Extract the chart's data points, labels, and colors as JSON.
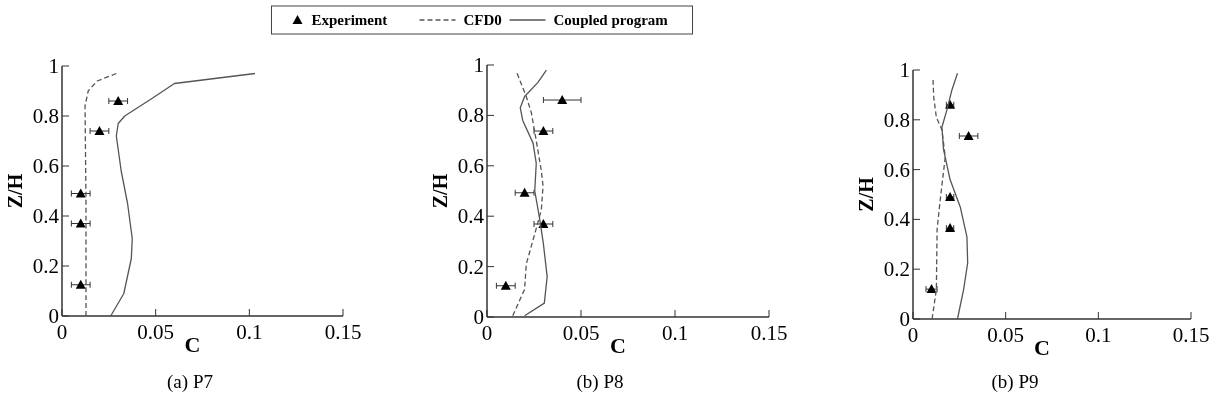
{
  "chart_data": [
    {
      "type": "line",
      "title": "(a) P7",
      "xlabel": "C",
      "ylabel": "Z/H",
      "xlim": [
        0,
        0.15
      ],
      "xticks": [
        0,
        0.05,
        0.1,
        0.15
      ],
      "ylim": [
        0,
        1
      ],
      "yticks": [
        0,
        0.2,
        0.4,
        0.6,
        0.8,
        1
      ],
      "legend": "top",
      "grid": false,
      "series": [
        {
          "name": "Experiment",
          "type": "scatter",
          "marker": "triangle",
          "color": "#000000",
          "x": [
            0.01,
            0.01,
            0.01,
            0.02,
            0.03
          ],
          "values": [
            0.125,
            0.37,
            0.49,
            0.74,
            0.86
          ],
          "xerrors": [
            0.005,
            0.005,
            0.005,
            0.005,
            0.005
          ]
        },
        {
          "name": "CFD0",
          "line_style": "dashed",
          "color": "#555555",
          "x": [
            0.0128,
            0.0128,
            0.0123,
            0.014,
            0.0188,
            0.029
          ],
          "values": [
            0,
            0.46,
            0.84,
            0.9,
            0.94,
            0.97
          ]
        },
        {
          "name": "Coupled program",
          "line_style": "solid",
          "color": "#555555",
          "x": [
            0.026,
            0.033,
            0.037,
            0.0375,
            0.035,
            0.0316,
            0.029,
            0.03,
            0.0335,
            0.0397,
            0.048,
            0.06,
            0.103
          ],
          "values": [
            0,
            0.09,
            0.23,
            0.31,
            0.45,
            0.58,
            0.72,
            0.77,
            0.8,
            0.83,
            0.87,
            0.93,
            0.97
          ]
        }
      ]
    },
    {
      "type": "line",
      "title": "(b) P8",
      "xlabel": "C",
      "ylabel": "Z/H",
      "xlim": [
        0,
        0.15
      ],
      "xticks": [
        0,
        0.05,
        0.1,
        0.15
      ],
      "ylim": [
        0,
        1
      ],
      "yticks": [
        0,
        0.2,
        0.4,
        0.6,
        0.8,
        1
      ],
      "grid": false,
      "series": [
        {
          "type": "scatter",
          "marker": "triangle",
          "color": "#000000",
          "x": [
            0.01,
            0.03,
            0.02,
            0.03,
            0.04
          ],
          "values": [
            0.124,
            0.369,
            0.493,
            0.738,
            0.861
          ],
          "xerrors": [
            0.005,
            0.005,
            0.005,
            0.005,
            0.01
          ]
        },
        {
          "line_style": "dashed",
          "color": "#555555",
          "x": [
            0.0137,
            0.02,
            0.0209,
            0.0254,
            0.0289,
            0.0298,
            0.0289,
            0.0262,
            0.0236,
            0.0209,
            0.016
          ],
          "values": [
            0.005,
            0.11,
            0.21,
            0.33,
            0.425,
            0.52,
            0.58,
            0.7,
            0.81,
            0.875,
            0.967
          ]
        },
        {
          "line_style": "solid",
          "color": "#555555",
          "x": [
            0.02,
            0.0305,
            0.032,
            0.03,
            0.028,
            0.0254,
            0.0262,
            0.0245,
            0.019,
            0.0177,
            0.02,
            0.027,
            0.0316
          ],
          "values": [
            0.005,
            0.055,
            0.16,
            0.29,
            0.39,
            0.5,
            0.61,
            0.69,
            0.78,
            0.83,
            0.875,
            0.93,
            0.98
          ]
        }
      ]
    },
    {
      "type": "line",
      "title": "(b) P9",
      "xlabel": "C",
      "ylabel": "Z/H",
      "xlim": [
        0,
        0.15
      ],
      "xticks": [
        0,
        0.05,
        0.1,
        0.15
      ],
      "ylim": [
        0,
        1
      ],
      "yticks": [
        0,
        0.2,
        0.4,
        0.6,
        0.8,
        1
      ],
      "grid": false,
      "series": [
        {
          "type": "scatter",
          "marker": "triangle",
          "color": "#000000",
          "x": [
            0.01,
            0.02,
            0.02,
            0.03,
            0.02
          ],
          "values": [
            0.12,
            0.365,
            0.49,
            0.735,
            0.86
          ],
          "xerrors": [
            0.003,
            0.002,
            0.002,
            0.005,
            0.002
          ]
        },
        {
          "line_style": "dashed",
          "color": "#555555",
          "x": [
            0.0103,
            0.0126,
            0.013,
            0.0147,
            0.0174,
            0.0156,
            0.0126,
            0.0112,
            0.0108
          ],
          "values": [
            0,
            0.118,
            0.36,
            0.48,
            0.65,
            0.76,
            0.81,
            0.89,
            0.96
          ]
        },
        {
          "line_style": "solid",
          "color": "#555555",
          "x": [
            0.024,
            0.0273,
            0.0295,
            0.0291,
            0.0255,
            0.02,
            0.0165,
            0.0156,
            0.0183,
            0.021,
            0.024
          ],
          "values": [
            0,
            0.118,
            0.225,
            0.33,
            0.45,
            0.56,
            0.68,
            0.77,
            0.84,
            0.92,
            0.987
          ]
        }
      ]
    }
  ]
}
